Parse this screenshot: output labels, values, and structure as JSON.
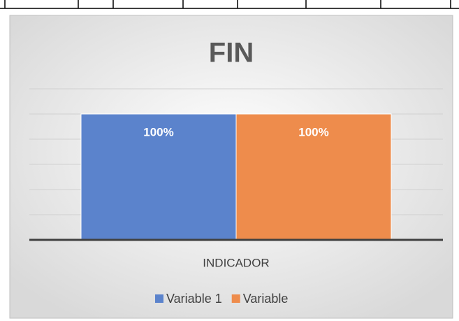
{
  "chart_data": {
    "type": "bar",
    "title": "FIN",
    "categories": [
      "INDICADOR"
    ],
    "series": [
      {
        "name": "Variable 1",
        "color": "#5b83cc",
        "values": [
          100
        ],
        "value_labels": [
          "100%"
        ]
      },
      {
        "name": "Variable",
        "color": "#ee8c4c",
        "values": [
          100
        ],
        "value_labels": [
          "100%"
        ]
      }
    ],
    "ylim": [
      0,
      120
    ],
    "yticks": [
      0,
      20,
      40,
      60,
      80,
      100,
      120
    ],
    "grid": true,
    "legend": "bottom"
  }
}
